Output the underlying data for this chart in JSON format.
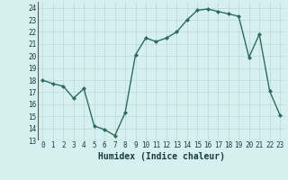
{
  "x": [
    0,
    1,
    2,
    3,
    4,
    5,
    6,
    7,
    8,
    9,
    10,
    11,
    12,
    13,
    14,
    15,
    16,
    17,
    18,
    19,
    20,
    21,
    22,
    23
  ],
  "y": [
    18,
    17.7,
    17.5,
    16.5,
    17.3,
    14.2,
    13.9,
    13.4,
    15.3,
    20.1,
    21.5,
    21.2,
    21.5,
    22.0,
    23.0,
    23.8,
    23.9,
    23.7,
    23.5,
    23.3,
    19.9,
    21.8,
    17.1,
    15.1
  ],
  "line_color": "#2e6b5e",
  "marker": "D",
  "marker_size": 2.0,
  "bg_color": "#d6f0f0",
  "grid_color": "#b8d8d8",
  "xlabel": "Humidex (Indice chaleur)",
  "ylim": [
    13,
    24.5
  ],
  "xlim": [
    -0.5,
    23.5
  ],
  "yticks": [
    13,
    14,
    15,
    16,
    17,
    18,
    19,
    20,
    21,
    22,
    23,
    24
  ],
  "xticks": [
    0,
    1,
    2,
    3,
    4,
    5,
    6,
    7,
    8,
    9,
    10,
    11,
    12,
    13,
    14,
    15,
    16,
    17,
    18,
    19,
    20,
    21,
    22,
    23
  ],
  "tick_label_fontsize": 5.5,
  "xlabel_fontsize": 7.0,
  "line_width": 1.0
}
